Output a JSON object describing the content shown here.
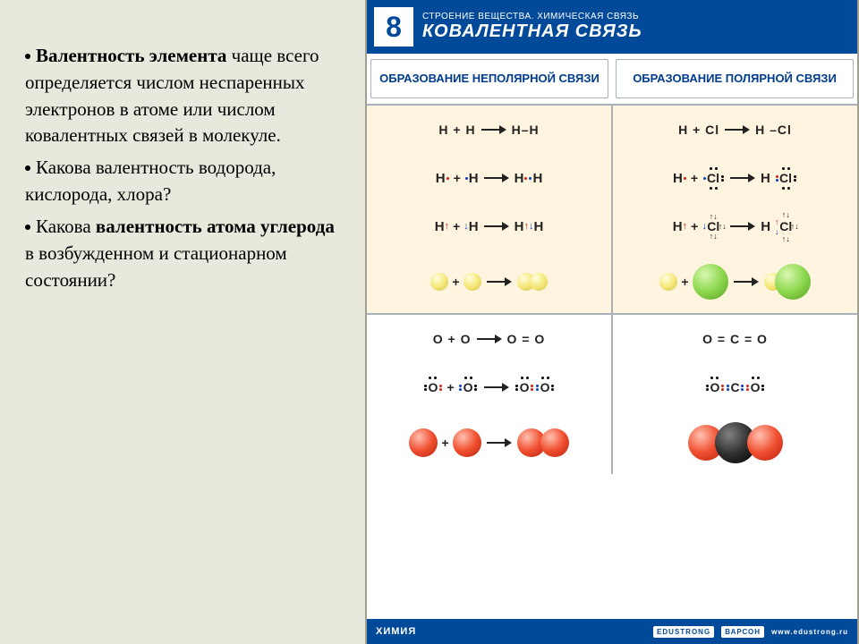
{
  "left": {
    "p1_bold": "Валентность элемента",
    "p1_rest": " чаще всего определяется числом неспаренных электронов в атоме или числом ковалентных связей в молекуле.",
    "p2": "Какова валентность водорода, кислорода, хлора?",
    "p3_a": "Какова ",
    "p3_bold": "валентность атома углерода",
    "p3_b": " в возбужденном и стационарном состоянии?"
  },
  "poster": {
    "number": "8",
    "subtitle": "СТРОЕНИЕ ВЕЩЕСТВА. ХИМИЧЕСКАЯ СВЯЗЬ",
    "title": "КОВАЛЕНТНАЯ СВЯЗЬ",
    "col1": "ОБРАЗОВАНИЕ НЕПОЛЯРНОЙ СВЯЗИ",
    "col2": "ОБРАЗОВАНИЕ ПОЛЯРНОЙ СВЯЗИ",
    "row1a_left": "H + H",
    "row1a_left_r": "H–H",
    "row1a_right": "H + Cl",
    "row1a_right_r": "H –Cl",
    "row2b_left": "O + O",
    "row2b_left_r": "O = O",
    "row2b_right": "O = C = O",
    "footer_left": "ХИМИЯ",
    "footer_logo1": "EDUSTRONG",
    "footer_logo2": "ВАРСОН",
    "footer_url": "www.edustrong.ru"
  },
  "colors": {
    "bg": "#e8e8dc",
    "poster_blue": "#004a99",
    "cream": "#fff4e0",
    "rule": "#a8b0b8",
    "yellow": "#f5e97a",
    "green": "#8ed850",
    "red": "#f05030",
    "black": "#303030"
  },
  "fontsize": {
    "body": 21,
    "header_big": 20,
    "header_small": 10,
    "col_header": 13,
    "formula": 14
  }
}
